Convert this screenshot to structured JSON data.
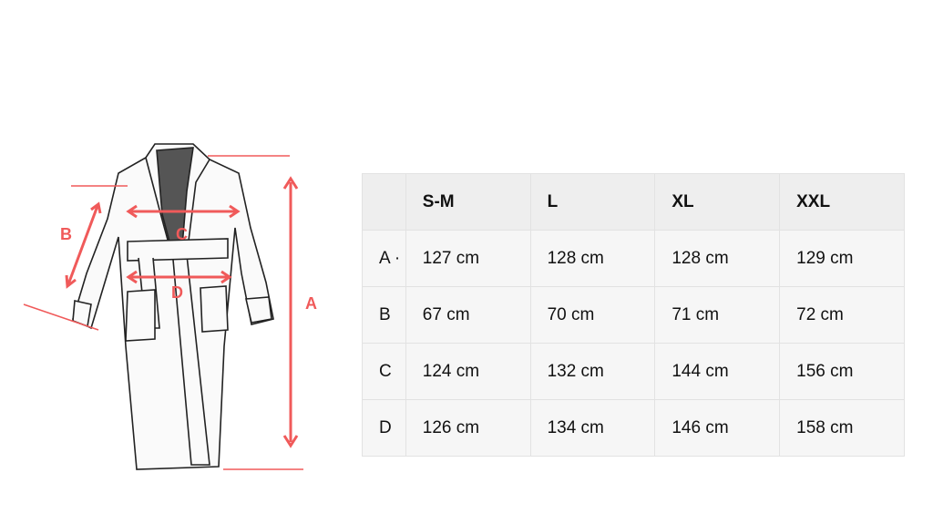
{
  "diagram": {
    "labels": {
      "a": "A",
      "b": "B",
      "c": "C",
      "d": "D"
    },
    "accent_color": "#f05a5a"
  },
  "table": {
    "headers": [
      "",
      "S-M",
      "L",
      "XL",
      "XXL"
    ],
    "rows": [
      {
        "label": "A ·",
        "values": [
          "127 cm",
          "128 cm",
          "128 cm",
          "129 cm"
        ]
      },
      {
        "label": "B",
        "values": [
          "67 cm",
          "70 cm",
          "71 cm",
          "72 cm"
        ]
      },
      {
        "label": "C",
        "values": [
          "124 cm",
          "132 cm",
          "144 cm",
          "156 cm"
        ]
      },
      {
        "label": "D",
        "values": [
          "126 cm",
          "134 cm",
          "146 cm",
          "158 cm"
        ]
      }
    ]
  }
}
